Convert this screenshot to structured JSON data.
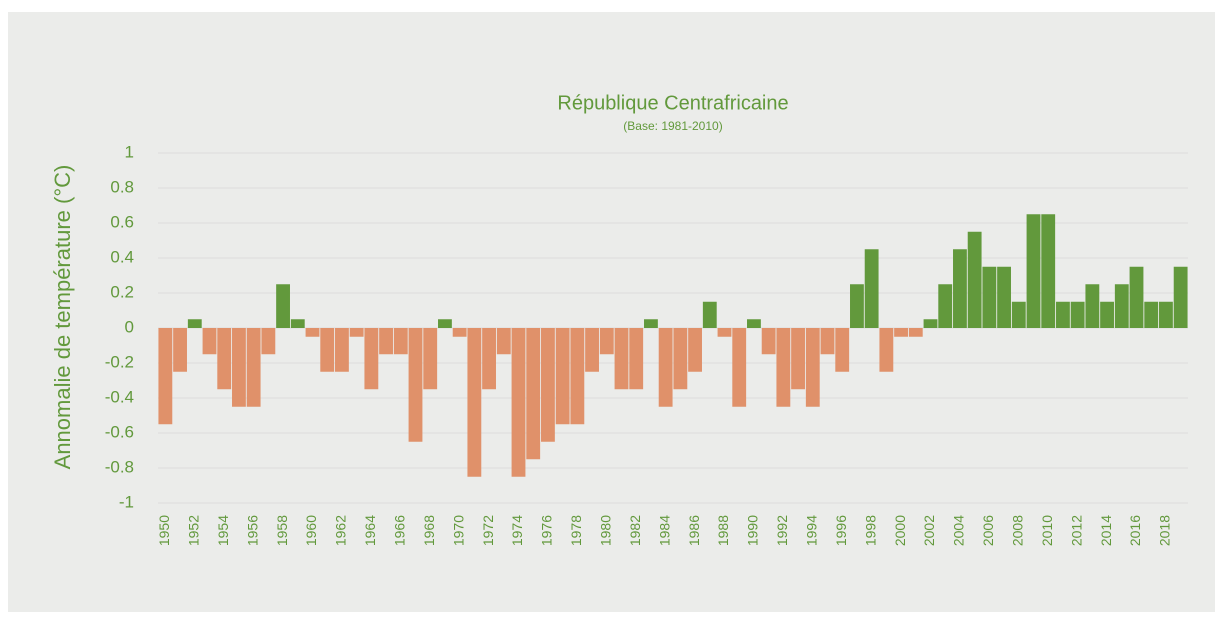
{
  "chart_data": {
    "type": "bar",
    "title": "République Centrafricaine",
    "subtitle": "(Base: 1981-2010)",
    "y_label": "Annomalie de température (°C)",
    "categories": [
      "1950",
      null,
      "1952",
      null,
      "1954",
      null,
      "1956",
      null,
      "1958",
      null,
      "1960",
      null,
      "1962",
      null,
      "1964",
      null,
      "1966",
      null,
      "1968",
      null,
      "1970",
      null,
      "1972",
      null,
      "1974",
      null,
      "1976",
      null,
      "1978",
      null,
      "1980",
      null,
      "1982",
      null,
      "1984",
      null,
      "1986",
      null,
      "1988",
      null,
      "1990",
      null,
      "1992",
      null,
      "1994",
      null,
      "1996",
      null,
      "1998",
      null,
      "2000",
      null,
      "2002",
      null,
      "2004",
      null,
      "2006",
      null,
      "2008",
      null,
      "2010",
      null,
      "2012",
      null,
      "2014",
      null,
      "2016",
      null,
      "2018",
      null
    ],
    "values": [
      -0.55,
      -0.25,
      0.05,
      -0.15,
      -0.35,
      -0.45,
      -0.45,
      -0.15,
      0.25,
      0.05,
      -0.05,
      -0.25,
      -0.25,
      -0.05,
      -0.35,
      -0.15,
      -0.15,
      -0.65,
      -0.35,
      0.05,
      -0.05,
      -0.85,
      -0.35,
      -0.15,
      -0.85,
      -0.75,
      -0.65,
      -0.55,
      -0.55,
      -0.25,
      -0.15,
      -0.35,
      -0.35,
      0.05,
      -0.45,
      -0.35,
      -0.25,
      0.15,
      -0.05,
      -0.45,
      0.05,
      -0.15,
      -0.45,
      -0.35,
      -0.45,
      -0.15,
      -0.25,
      0.25,
      0.45,
      -0.25,
      -0.05,
      -0.05,
      0.05,
      0.25,
      0.45,
      0.55,
      0.35,
      0.35,
      0.15,
      0.65,
      0.65,
      0.15,
      0.15,
      0.25,
      0.15,
      0.25,
      0.35,
      0.15,
      0.15,
      0.35
    ],
    "positive_color": "#62993c",
    "negative_color": "#e0916a",
    "ylim": [
      -1,
      1
    ],
    "yticks": [
      -1,
      -0.8,
      -0.6,
      -0.4,
      -0.2,
      0,
      0.2,
      0.4,
      0.6,
      0.8,
      1
    ],
    "grid": true
  }
}
